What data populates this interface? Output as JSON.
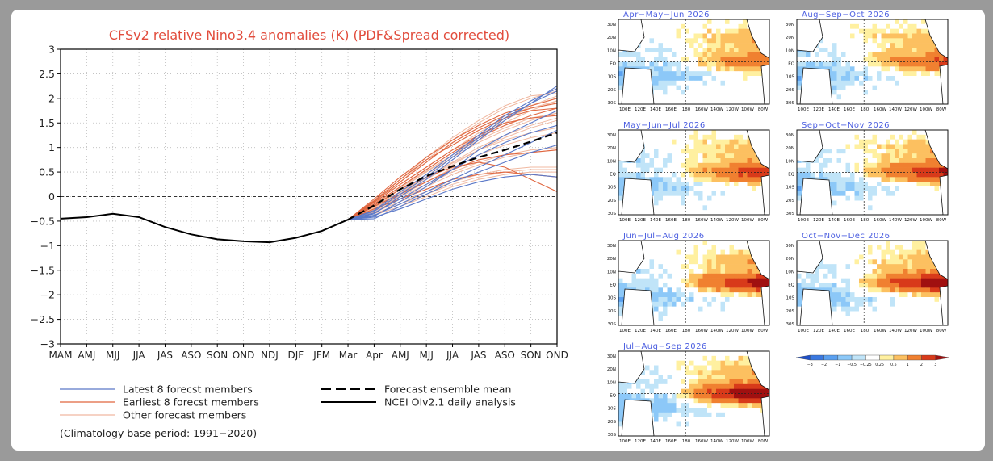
{
  "chart_data": [
    {
      "type": "line",
      "title": "CFSv2 relative Nino3.4 anomalies (K) (PDF&Spread corrected)",
      "categories": [
        "MAM",
        "AMJ",
        "MJJ",
        "JJA",
        "JAS",
        "ASO",
        "SON",
        "OND",
        "NDJ",
        "DJF",
        "JFM",
        "Mar",
        "Apr",
        "AMJ",
        "MJJ",
        "JJA",
        "JAS",
        "ASO",
        "SON",
        "OND"
      ],
      "y_ticks": [
        "3",
        "2.5",
        "2",
        "1.5",
        "1",
        "0.5",
        "0",
        "−0.5",
        "−1",
        "−1.5",
        "−2",
        "−2.5",
        "−3"
      ],
      "ylim": [
        -3,
        3
      ],
      "grid": "dotted",
      "observed": {
        "name": "NCEI OIv2.1 daily analysis",
        "x": [
          0,
          1,
          2,
          3,
          4,
          5,
          6,
          7,
          8,
          9,
          10,
          11
        ],
        "values": [
          -0.45,
          -0.42,
          -0.35,
          -0.42,
          -0.62,
          -0.77,
          -0.87,
          -0.91,
          -0.93,
          -0.84,
          -0.7,
          -0.47
        ]
      },
      "ensemble_mean": {
        "name": "Forecast ensemble mean",
        "x": [
          11,
          12,
          13,
          14,
          15,
          16,
          17,
          18,
          19
        ],
        "values": [
          -0.47,
          -0.18,
          0.15,
          0.42,
          0.62,
          0.8,
          0.95,
          1.12,
          1.3
        ]
      },
      "latest_members": [
        [
          -0.47,
          -0.35,
          0.0,
          0.35,
          0.75,
          1.15,
          1.55,
          1.9,
          2.25
        ],
        [
          -0.47,
          -0.3,
          0.05,
          0.4,
          0.8,
          1.2,
          1.6,
          1.9,
          2.15
        ],
        [
          -0.47,
          -0.4,
          -0.1,
          0.2,
          0.55,
          0.95,
          1.25,
          1.5,
          1.75
        ],
        [
          -0.47,
          -0.45,
          -0.2,
          0.05,
          0.3,
          0.5,
          0.7,
          0.9,
          1.05
        ],
        [
          -0.47,
          -0.38,
          -0.15,
          0.1,
          0.35,
          0.6,
          0.85,
          1.1,
          1.35
        ],
        [
          -0.47,
          -0.42,
          -0.25,
          -0.05,
          0.15,
          0.3,
          0.4,
          0.45,
          0.4
        ],
        [
          -0.47,
          -0.33,
          -0.05,
          0.25,
          0.55,
          0.85,
          1.1,
          1.3,
          1.45
        ],
        [
          -0.47,
          -0.28,
          0.1,
          0.45,
          0.85,
          1.25,
          1.65,
          1.95,
          2.2
        ]
      ],
      "earliest_members": [
        [
          -0.47,
          -0.1,
          0.3,
          0.7,
          1.1,
          1.4,
          1.65,
          1.8,
          1.9
        ],
        [
          -0.47,
          -0.15,
          0.2,
          0.55,
          0.9,
          1.2,
          1.45,
          1.65,
          1.8
        ],
        [
          -0.47,
          -0.2,
          0.05,
          0.3,
          0.55,
          0.75,
          0.85,
          0.9,
          0.95
        ],
        [
          -0.47,
          -0.05,
          0.4,
          0.8,
          1.15,
          1.45,
          1.7,
          1.85,
          2.0
        ],
        [
          -0.47,
          -0.25,
          -0.05,
          0.15,
          0.35,
          0.45,
          0.5,
          0.45,
          0.4
        ],
        [
          -0.47,
          -0.12,
          0.25,
          0.6,
          0.95,
          1.25,
          1.5,
          1.6,
          1.65
        ],
        [
          -0.47,
          -0.18,
          0.15,
          0.4,
          0.6,
          0.7,
          0.6,
          0.35,
          0.1
        ],
        [
          -0.47,
          -0.08,
          0.35,
          0.75,
          1.05,
          1.35,
          1.6,
          1.75,
          1.8
        ]
      ],
      "other_members": [
        [
          -0.47,
          -0.2,
          0.15,
          0.5,
          0.85,
          1.2,
          1.5,
          1.75,
          1.95
        ],
        [
          -0.47,
          -0.25,
          0.05,
          0.35,
          0.65,
          0.95,
          1.2,
          1.4,
          1.55
        ],
        [
          -0.47,
          -0.15,
          0.3,
          0.75,
          1.15,
          1.5,
          1.8,
          2.0,
          2.15
        ],
        [
          -0.47,
          -0.3,
          -0.05,
          0.2,
          0.45,
          0.65,
          0.8,
          0.9,
          0.95
        ],
        [
          -0.47,
          -0.22,
          0.1,
          0.45,
          0.8,
          1.1,
          1.35,
          1.55,
          1.7
        ],
        [
          -0.47,
          -0.35,
          -0.15,
          0.05,
          0.25,
          0.4,
          0.5,
          0.55,
          0.55
        ],
        [
          -0.47,
          -0.18,
          0.2,
          0.55,
          0.9,
          1.25,
          1.55,
          1.85,
          2.05
        ],
        [
          -0.47,
          -0.28,
          0.0,
          0.25,
          0.5,
          0.7,
          0.85,
          0.95,
          1.0
        ],
        [
          -0.47,
          -0.12,
          0.25,
          0.6,
          0.95,
          1.3,
          1.6,
          1.8,
          1.95
        ],
        [
          -0.47,
          -0.32,
          -0.1,
          0.1,
          0.3,
          0.45,
          0.55,
          0.6,
          0.6
        ],
        [
          -0.47,
          -0.2,
          0.1,
          0.4,
          0.7,
          1.0,
          1.25,
          1.45,
          1.6
        ],
        [
          -0.47,
          -0.1,
          0.35,
          0.8,
          1.2,
          1.55,
          1.85,
          2.05,
          2.1
        ],
        [
          -0.47,
          -0.26,
          0.02,
          0.3,
          0.58,
          0.85,
          1.05,
          1.2,
          1.3
        ],
        [
          -0.47,
          -0.38,
          -0.2,
          0.0,
          0.2,
          0.35,
          0.45,
          0.5,
          0.5
        ],
        [
          -0.47,
          -0.16,
          0.18,
          0.52,
          0.85,
          1.15,
          1.4,
          1.6,
          1.7
        ],
        [
          -0.47,
          -0.24,
          0.08,
          0.38,
          0.68,
          0.95,
          1.15,
          1.3,
          1.4
        ]
      ],
      "legend": [
        {
          "label": "Latest 8 forecst members",
          "color": "#5a78c8",
          "style": "solid"
        },
        {
          "label": "Earliest 8 forecst members",
          "color": "#e0663f",
          "style": "solid"
        },
        {
          "label": "Other forecast members",
          "color": "#f0b8a0",
          "style": "solid"
        },
        {
          "label": "Forecast ensemble mean",
          "color": "#000000",
          "style": "dashed"
        },
        {
          "label": "NCEI OIv2.1 daily analysis",
          "color": "#000000",
          "style": "solid"
        }
      ],
      "note": "(Climatology base period: 1991−2020)",
      "colors": {
        "title": "#e14c3c",
        "latest": "#5a78c8",
        "earliest": "#e0663f",
        "other": "#f0b8a0"
      }
    },
    {
      "type": "heatmap",
      "panels": [
        {
          "title": "Apr−May−Jun 2026"
        },
        {
          "title": "Aug−Sep−Oct 2026"
        },
        {
          "title": "May−Jun−Jul 2026"
        },
        {
          "title": "Sep−Oct−Nov 2026"
        },
        {
          "title": "Jun−Jul−Aug 2026"
        },
        {
          "title": "Oct−Nov−Dec 2026"
        },
        {
          "title": "Jul−Aug−Sep 2026"
        }
      ],
      "lat_labels": [
        "30N",
        "20N",
        "10N",
        "EQ",
        "10S",
        "20S",
        "30S"
      ],
      "lon_labels": [
        "100E",
        "120E",
        "140E",
        "160E",
        "180",
        "160W",
        "140W",
        "120W",
        "100W",
        "80W"
      ],
      "colorbar_labels": [
        "−3",
        "−2",
        "−1",
        "−0.5",
        "−0.25",
        "0.25",
        "0.5",
        "1",
        "2",
        "3"
      ],
      "colorbar_colors": [
        "#2050c8",
        "#3a78e0",
        "#5aa0f0",
        "#8cc8f8",
        "#c0e4f8",
        "#ffffff",
        "#fff0a0",
        "#fcc060",
        "#f08030",
        "#d83a1a",
        "#a01010"
      ]
    }
  ]
}
